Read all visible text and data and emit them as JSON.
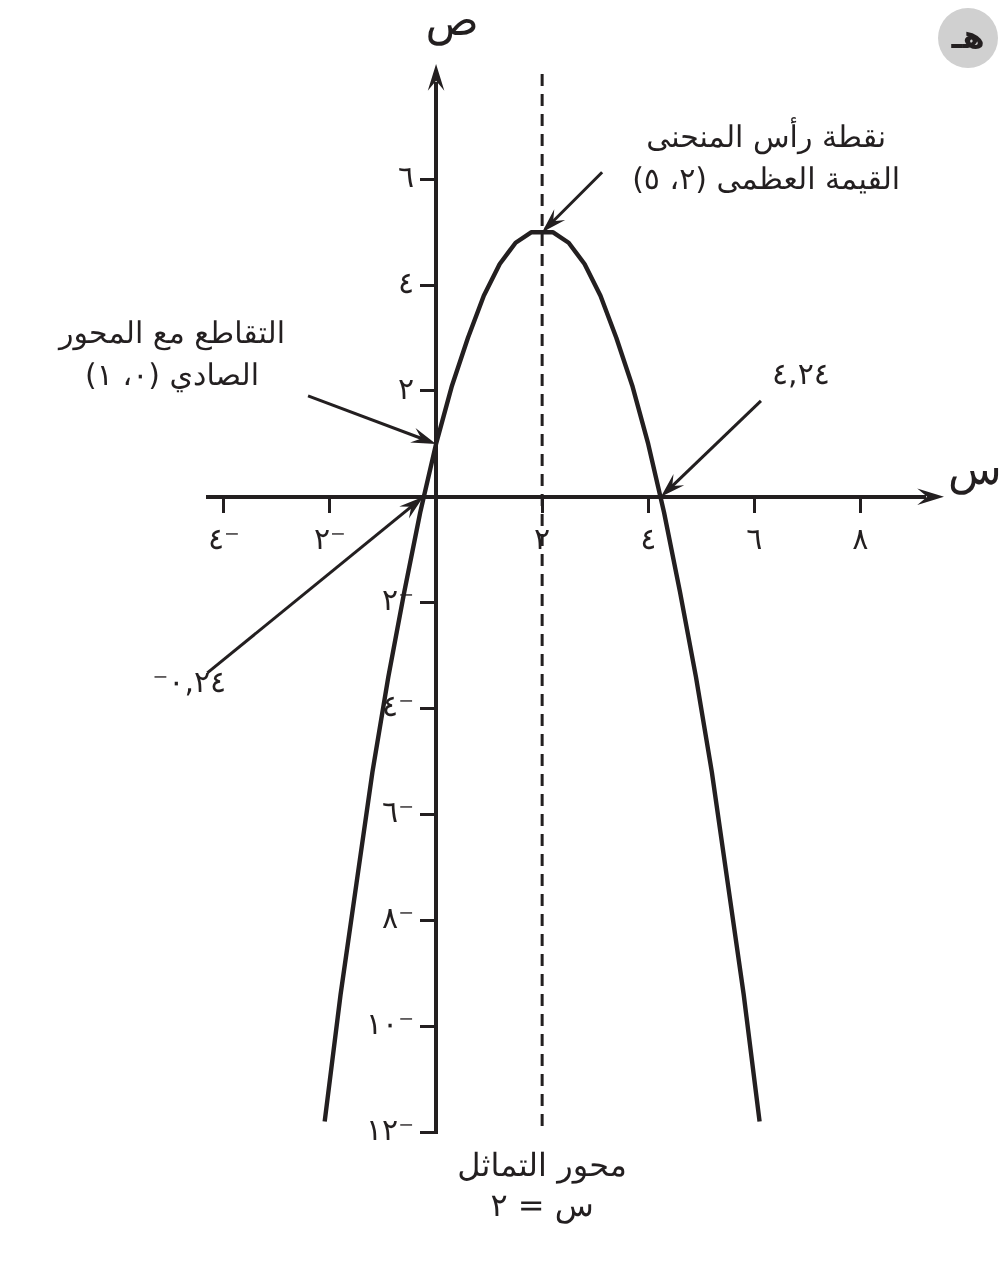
{
  "chart_data": {
    "type": "line",
    "title": "هـ",
    "xlabel": "س",
    "ylabel": "ص",
    "xlim": [
      -4.3,
      9.2
    ],
    "ylim": [
      -12,
      7.8
    ],
    "xticks": [
      {
        "value": -4,
        "label": "٤⁻"
      },
      {
        "value": -2,
        "label": "٢⁻"
      },
      {
        "value": 2,
        "label": "٢"
      },
      {
        "value": 4,
        "label": "٤"
      },
      {
        "value": 6,
        "label": "٦"
      },
      {
        "value": 8,
        "label": "٨"
      }
    ],
    "yticks": [
      {
        "value": 6,
        "label": "٦"
      },
      {
        "value": 4,
        "label": "٤"
      },
      {
        "value": 2,
        "label": "٢"
      },
      {
        "value": -2,
        "label": "٢⁻"
      },
      {
        "value": -4,
        "label": "٤⁻"
      },
      {
        "value": -6,
        "label": "٦⁻"
      },
      {
        "value": -8,
        "label": "٨⁻"
      },
      {
        "value": -10,
        "label": "١٠⁻"
      },
      {
        "value": -12,
        "label": "١٢⁻"
      }
    ],
    "series": [
      {
        "color": "#231f20",
        "x": [
          -2.1,
          -1.8,
          -1.5,
          -1.2,
          -0.9,
          -0.6,
          -0.3,
          0,
          0.3,
          0.6,
          0.9,
          1.2,
          1.5,
          1.8,
          2,
          2.2,
          2.5,
          2.8,
          3.1,
          3.4,
          3.7,
          4,
          4.3,
          4.6,
          4.9,
          5.2,
          5.5,
          5.8,
          6.1
        ],
        "values": [
          -11.8,
          -9.4,
          -7.3,
          -5.2,
          -3.4,
          -1.8,
          -0.3,
          1,
          2.1,
          3,
          3.8,
          4.4,
          4.8,
          5,
          5,
          5,
          4.8,
          4.4,
          3.8,
          3,
          2.1,
          1,
          -0.3,
          -1.8,
          -3.4,
          -5.2,
          -7.3,
          -9.4,
          -11.8
        ]
      }
    ],
    "ref_lines": [
      {
        "axis": "x",
        "value": 2,
        "label": "محور التماثل\nس = ٢",
        "line_style": "dashed",
        "color": "#231f20"
      }
    ],
    "annotations": [
      {
        "text": "نقطة رأس المنحنى\nالقيمة العظمى (٢، ٥)",
        "x": 2,
        "y": 5
      },
      {
        "text": "التقاطع مع المحور\nالصادي (٠، ١)",
        "x": 0,
        "y": 1
      },
      {
        "text": "٤,٢٤",
        "x": 4.24,
        "y": 0
      },
      {
        "text": "٠,٢٤⁻",
        "x": -0.24,
        "y": 0
      }
    ],
    "marker": "none",
    "line_style": "solid",
    "grid": false,
    "legend": false
  }
}
